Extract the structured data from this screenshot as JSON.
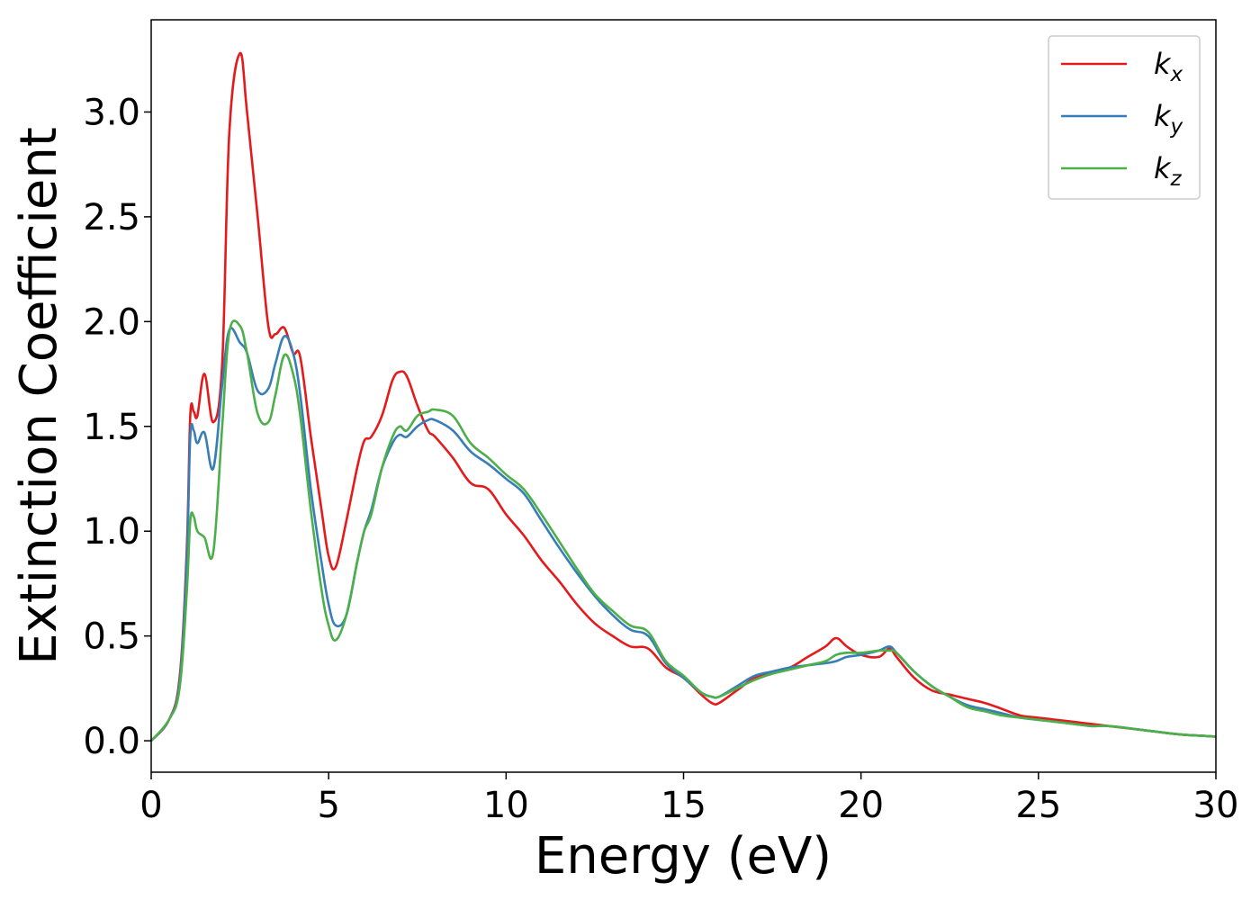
{
  "chart_data": {
    "type": "line",
    "title": "",
    "xlabel": "Energy (eV)",
    "ylabel": "Extinction Coefficient",
    "xlim": [
      0,
      30
    ],
    "ylim": [
      -0.15,
      3.44
    ],
    "xticks": [
      "0",
      "5",
      "10",
      "15",
      "20",
      "25",
      "30"
    ],
    "yticks": [
      "0.0",
      "0.5",
      "1.0",
      "1.5",
      "2.0",
      "2.5",
      "3.0"
    ],
    "grid": false,
    "legend_position": "top-right",
    "series": [
      {
        "name": "k_x",
        "label_main": "k",
        "label_sub": "x",
        "color": "#e41a1c",
        "x": [
          0,
          0.5,
          0.8,
          1.0,
          1.1,
          1.2,
          1.3,
          1.5,
          1.75,
          2.0,
          2.2,
          2.5,
          2.7,
          3.0,
          3.3,
          3.5,
          3.75,
          4.0,
          4.2,
          4.5,
          4.8,
          5.0,
          5.2,
          5.5,
          5.8,
          6.0,
          6.2,
          6.5,
          6.8,
          7.0,
          7.2,
          7.5,
          7.8,
          8.0,
          8.5,
          9.0,
          9.5,
          10.0,
          10.5,
          11.0,
          11.5,
          12.0,
          12.5,
          13.0,
          13.5,
          14.0,
          14.5,
          15.0,
          15.5,
          15.8,
          16.0,
          16.5,
          17.0,
          17.5,
          18.0,
          18.5,
          19.0,
          19.3,
          19.6,
          20.0,
          20.5,
          20.8,
          21.0,
          21.5,
          22.0,
          22.5,
          23.0,
          23.5,
          24.0,
          24.5,
          25.0,
          25.5,
          26.0,
          26.5,
          27.0,
          28.0,
          29.0,
          30.0
        ],
        "y": [
          0.0,
          0.1,
          0.3,
          0.9,
          1.55,
          1.57,
          1.55,
          1.75,
          1.52,
          1.8,
          2.9,
          3.28,
          3.0,
          2.5,
          1.98,
          1.94,
          1.97,
          1.85,
          1.83,
          1.45,
          1.1,
          0.88,
          0.83,
          1.05,
          1.3,
          1.43,
          1.45,
          1.55,
          1.72,
          1.76,
          1.74,
          1.6,
          1.48,
          1.45,
          1.35,
          1.23,
          1.2,
          1.08,
          0.98,
          0.86,
          0.76,
          0.65,
          0.56,
          0.5,
          0.45,
          0.44,
          0.35,
          0.3,
          0.22,
          0.18,
          0.18,
          0.24,
          0.3,
          0.33,
          0.35,
          0.4,
          0.45,
          0.49,
          0.45,
          0.41,
          0.4,
          0.44,
          0.4,
          0.3,
          0.24,
          0.22,
          0.2,
          0.18,
          0.15,
          0.12,
          0.11,
          0.1,
          0.09,
          0.08,
          0.07,
          0.05,
          0.03,
          0.02
        ]
      },
      {
        "name": "k_y",
        "label_main": "k",
        "label_sub": "y",
        "color": "#377eb8",
        "x": [
          0,
          0.5,
          0.8,
          1.0,
          1.1,
          1.2,
          1.3,
          1.5,
          1.75,
          2.0,
          2.2,
          2.5,
          2.7,
          3.0,
          3.3,
          3.5,
          3.75,
          4.0,
          4.2,
          4.5,
          4.8,
          5.0,
          5.2,
          5.5,
          5.8,
          6.0,
          6.2,
          6.5,
          6.8,
          7.0,
          7.2,
          7.5,
          7.8,
          8.0,
          8.5,
          9.0,
          9.5,
          10.0,
          10.5,
          11.0,
          11.5,
          12.0,
          12.5,
          13.0,
          13.5,
          14.0,
          14.5,
          15.0,
          15.5,
          15.8,
          16.0,
          16.5,
          17.0,
          17.5,
          18.0,
          18.5,
          19.0,
          19.3,
          19.6,
          20.0,
          20.5,
          20.8,
          21.0,
          21.5,
          22.0,
          22.5,
          23.0,
          23.5,
          24.0,
          24.5,
          25.0,
          25.5,
          26.0,
          26.5,
          27.0,
          28.0,
          29.0,
          30.0
        ],
        "y": [
          0.0,
          0.1,
          0.28,
          0.85,
          1.45,
          1.48,
          1.42,
          1.47,
          1.3,
          1.7,
          1.96,
          1.9,
          1.85,
          1.67,
          1.68,
          1.8,
          1.93,
          1.85,
          1.65,
          1.2,
          0.85,
          0.65,
          0.55,
          0.6,
          0.85,
          1.0,
          1.1,
          1.3,
          1.42,
          1.46,
          1.45,
          1.5,
          1.53,
          1.53,
          1.48,
          1.38,
          1.32,
          1.25,
          1.18,
          1.05,
          0.92,
          0.8,
          0.69,
          0.6,
          0.53,
          0.5,
          0.37,
          0.3,
          0.23,
          0.21,
          0.21,
          0.26,
          0.31,
          0.33,
          0.35,
          0.36,
          0.37,
          0.38,
          0.4,
          0.41,
          0.43,
          0.45,
          0.42,
          0.33,
          0.26,
          0.21,
          0.17,
          0.15,
          0.13,
          0.11,
          0.1,
          0.09,
          0.08,
          0.07,
          0.07,
          0.05,
          0.03,
          0.02
        ]
      },
      {
        "name": "k_z",
        "label_main": "k",
        "label_sub": "z",
        "color": "#4daf4a",
        "x": [
          0,
          0.5,
          0.8,
          1.0,
          1.1,
          1.2,
          1.3,
          1.5,
          1.75,
          2.0,
          2.2,
          2.5,
          2.7,
          3.0,
          3.3,
          3.5,
          3.75,
          4.0,
          4.2,
          4.5,
          4.8,
          5.0,
          5.2,
          5.5,
          5.8,
          6.0,
          6.2,
          6.5,
          6.8,
          7.0,
          7.2,
          7.5,
          7.8,
          8.0,
          8.5,
          9.0,
          9.5,
          10.0,
          10.5,
          11.0,
          11.5,
          12.0,
          12.5,
          13.0,
          13.5,
          14.0,
          14.5,
          15.0,
          15.5,
          15.8,
          16.0,
          16.5,
          17.0,
          17.5,
          18.0,
          18.5,
          19.0,
          19.3,
          19.6,
          20.0,
          20.5,
          20.8,
          21.0,
          21.5,
          22.0,
          22.5,
          23.0,
          23.5,
          24.0,
          24.5,
          25.0,
          25.5,
          26.0,
          26.5,
          27.0,
          28.0,
          29.0,
          30.0
        ],
        "y": [
          0.0,
          0.1,
          0.25,
          0.7,
          1.05,
          1.07,
          1.0,
          0.97,
          0.9,
          1.5,
          1.95,
          1.98,
          1.85,
          1.56,
          1.52,
          1.65,
          1.84,
          1.75,
          1.55,
          1.1,
          0.72,
          0.55,
          0.48,
          0.6,
          0.85,
          1.0,
          1.08,
          1.3,
          1.45,
          1.5,
          1.48,
          1.55,
          1.57,
          1.58,
          1.55,
          1.42,
          1.35,
          1.27,
          1.2,
          1.08,
          0.95,
          0.82,
          0.7,
          0.62,
          0.55,
          0.52,
          0.38,
          0.31,
          0.23,
          0.21,
          0.21,
          0.25,
          0.29,
          0.32,
          0.34,
          0.36,
          0.38,
          0.41,
          0.42,
          0.42,
          0.43,
          0.43,
          0.42,
          0.33,
          0.26,
          0.21,
          0.16,
          0.14,
          0.12,
          0.11,
          0.1,
          0.09,
          0.08,
          0.07,
          0.07,
          0.05,
          0.03,
          0.02
        ]
      }
    ]
  }
}
